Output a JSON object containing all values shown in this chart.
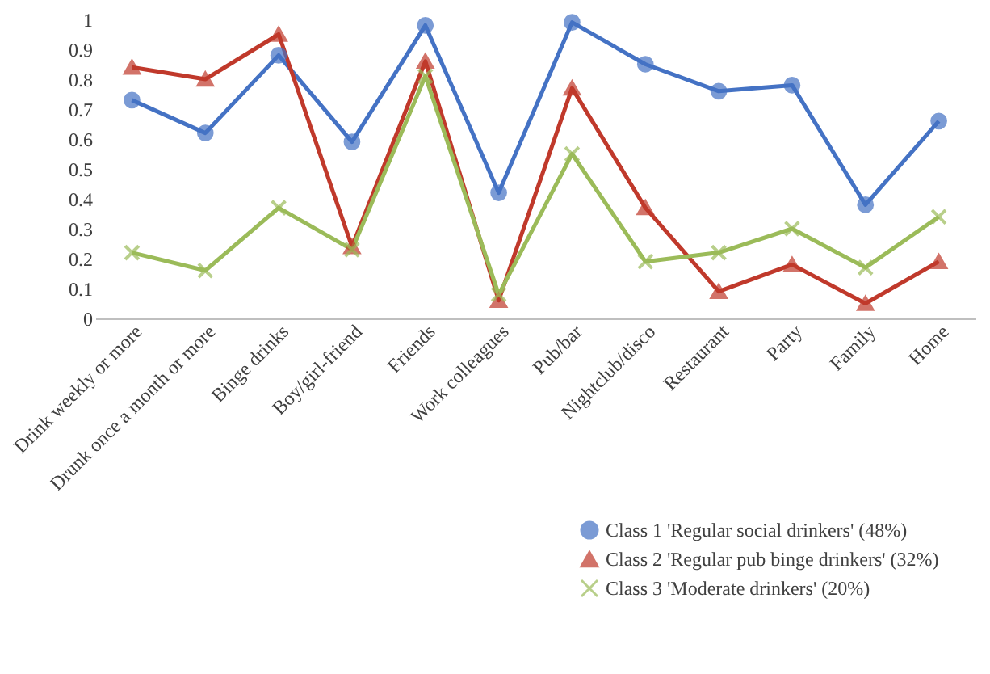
{
  "chart_data": {
    "type": "line",
    "categories": [
      "Drink weekly or more",
      "Drunk once a month or more",
      "Binge drinks",
      "Boy/girl-friend",
      "Friends",
      "Work colleagues",
      "Pub/bar",
      "Nightclub/disco",
      "Restaurant",
      "Party",
      "Family",
      "Home"
    ],
    "series": [
      {
        "name": "Class 1 'Regular social drinkers' (48%)",
        "color": "#4472c4",
        "marker": "circle",
        "values": [
          0.73,
          0.62,
          0.88,
          0.59,
          0.98,
          0.42,
          0.99,
          0.85,
          0.76,
          0.78,
          0.38,
          0.66
        ]
      },
      {
        "name": "Class 2 'Regular pub binge drinkers' (32%)",
        "color": "#c0392b",
        "marker": "triangle",
        "values": [
          0.84,
          0.8,
          0.95,
          0.24,
          0.86,
          0.06,
          0.77,
          0.37,
          0.09,
          0.18,
          0.05,
          0.19
        ]
      },
      {
        "name": "Class 3 'Moderate drinkers' (20%)",
        "color": "#9bbb59",
        "marker": "cross",
        "values": [
          0.22,
          0.16,
          0.37,
          0.23,
          0.81,
          0.08,
          0.55,
          0.19,
          0.22,
          0.3,
          0.17,
          0.34
        ]
      }
    ],
    "ylim": [
      0,
      1
    ],
    "yticks": [
      0,
      0.1,
      0.2,
      0.3,
      0.4,
      0.5,
      0.6,
      0.7,
      0.8,
      0.9,
      1
    ],
    "grid": false,
    "legend": "bottom right",
    "line_style": "solid"
  }
}
